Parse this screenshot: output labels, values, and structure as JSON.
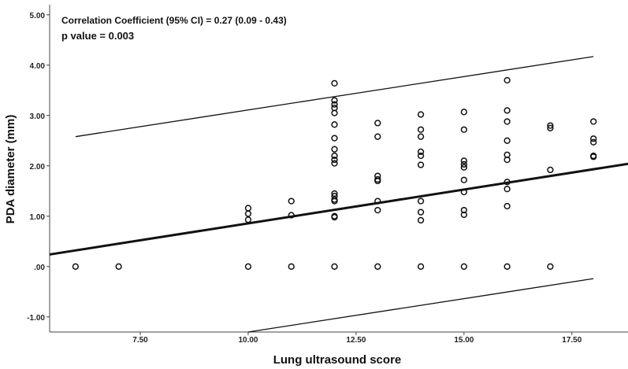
{
  "chart_data": {
    "type": "scatter",
    "title": "",
    "xlabel": "Lung ultrasound score",
    "ylabel": "PDA diameter (mm)",
    "xlim": [
      5.4,
      18.8
    ],
    "ylim": [
      -1.3,
      5.2
    ],
    "x_ticks": [
      7.5,
      10,
      12.5,
      15,
      17.5
    ],
    "x_tick_labels": [
      "7.50",
      "10.00",
      "12.50",
      "15.00",
      "17.50"
    ],
    "y_ticks": [
      -1,
      0,
      1,
      2,
      3,
      4,
      5
    ],
    "y_tick_labels": [
      "-1.00",
      ".00",
      "1.00",
      "2.00",
      "3.00",
      "4.00",
      "5.00"
    ],
    "grid": false,
    "annotations": [
      "Correlation Coefficient (95% CI) = 0.27 (0.09 - 0.43)",
      "p value =  0.003"
    ],
    "regression_line": {
      "x": [
        5.4,
        18.8
      ],
      "y": [
        0.24,
        2.04
      ]
    },
    "upper_interval": {
      "x": [
        6.0,
        18.0
      ],
      "y": [
        2.58,
        4.17
      ]
    },
    "lower_interval": {
      "x": [
        10.0,
        18.0
      ],
      "y": [
        -1.3,
        -0.24
      ]
    },
    "points": [
      {
        "x": 6,
        "y": 0
      },
      {
        "x": 7,
        "y": 0
      },
      {
        "x": 10,
        "y": 1.16
      },
      {
        "x": 10,
        "y": 1.05
      },
      {
        "x": 10,
        "y": 0.93
      },
      {
        "x": 10,
        "y": 0
      },
      {
        "x": 11,
        "y": 1.3
      },
      {
        "x": 11,
        "y": 1.02
      },
      {
        "x": 11,
        "y": 0
      },
      {
        "x": 12,
        "y": 3.64
      },
      {
        "x": 12,
        "y": 3.3
      },
      {
        "x": 12,
        "y": 3.22
      },
      {
        "x": 12,
        "y": 3.15
      },
      {
        "x": 12,
        "y": 3.05
      },
      {
        "x": 12,
        "y": 2.82
      },
      {
        "x": 12,
        "y": 2.55
      },
      {
        "x": 12,
        "y": 2.33
      },
      {
        "x": 12,
        "y": 2.2
      },
      {
        "x": 12,
        "y": 2.12
      },
      {
        "x": 12,
        "y": 2.05
      },
      {
        "x": 12,
        "y": 1.45
      },
      {
        "x": 12,
        "y": 1.4
      },
      {
        "x": 12,
        "y": 1.33
      },
      {
        "x": 12,
        "y": 1.3
      },
      {
        "x": 12,
        "y": 1.0
      },
      {
        "x": 12,
        "y": 0.98
      },
      {
        "x": 12,
        "y": 0
      },
      {
        "x": 13,
        "y": 2.85
      },
      {
        "x": 13,
        "y": 2.58
      },
      {
        "x": 13,
        "y": 1.8
      },
      {
        "x": 13,
        "y": 1.73
      },
      {
        "x": 13,
        "y": 1.7
      },
      {
        "x": 13,
        "y": 1.3
      },
      {
        "x": 13,
        "y": 1.12
      },
      {
        "x": 13,
        "y": 0
      },
      {
        "x": 14,
        "y": 3.02
      },
      {
        "x": 14,
        "y": 2.72
      },
      {
        "x": 14,
        "y": 2.58
      },
      {
        "x": 14,
        "y": 2.28
      },
      {
        "x": 14,
        "y": 2.2
      },
      {
        "x": 14,
        "y": 2.02
      },
      {
        "x": 14,
        "y": 1.3
      },
      {
        "x": 14,
        "y": 1.08
      },
      {
        "x": 14,
        "y": 0.92
      },
      {
        "x": 14,
        "y": 0
      },
      {
        "x": 15,
        "y": 3.07
      },
      {
        "x": 15,
        "y": 2.72
      },
      {
        "x": 15,
        "y": 2.1
      },
      {
        "x": 15,
        "y": 2.03
      },
      {
        "x": 15,
        "y": 1.97
      },
      {
        "x": 15,
        "y": 1.72
      },
      {
        "x": 15,
        "y": 1.48
      },
      {
        "x": 15,
        "y": 1.12
      },
      {
        "x": 15,
        "y": 1.03
      },
      {
        "x": 15,
        "y": 0
      },
      {
        "x": 16,
        "y": 3.7
      },
      {
        "x": 16,
        "y": 3.1
      },
      {
        "x": 16,
        "y": 2.88
      },
      {
        "x": 16,
        "y": 2.5
      },
      {
        "x": 16,
        "y": 2.22
      },
      {
        "x": 16,
        "y": 2.12
      },
      {
        "x": 16,
        "y": 1.68
      },
      {
        "x": 16,
        "y": 1.54
      },
      {
        "x": 16,
        "y": 1.2
      },
      {
        "x": 16,
        "y": 0
      },
      {
        "x": 17,
        "y": 2.8
      },
      {
        "x": 17,
        "y": 2.75
      },
      {
        "x": 17,
        "y": 1.92
      },
      {
        "x": 17,
        "y": 0
      },
      {
        "x": 18,
        "y": 2.88
      },
      {
        "x": 18,
        "y": 2.54
      },
      {
        "x": 18,
        "y": 2.47
      },
      {
        "x": 18,
        "y": 2.2
      },
      {
        "x": 18,
        "y": 2.18
      }
    ]
  }
}
